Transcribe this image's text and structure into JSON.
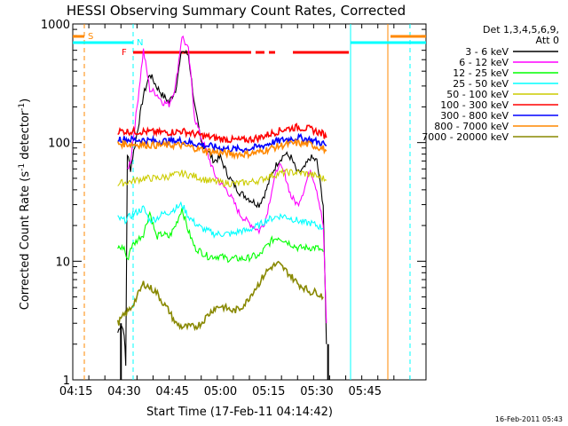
{
  "chart_data": {
    "type": "line",
    "title": "HESSI Observing Summary Count Rates, Corrected",
    "xlabel": "Start Time (17-Feb-11 04:14:42)",
    "ylabel_main": "Corrected Count Rate (s",
    "ylabel_sup1": "-1",
    "ylabel_mid": " detector",
    "ylabel_sup2": "-1",
    "ylabel_end": ")",
    "timestamp": "16-Feb-2011 05:43",
    "legend_title_1": "Det 1,3,4,5,6,9,",
    "legend_title_2": "Att 0",
    "x_range_min": [
      254,
      364
    ],
    "y_scale": "log",
    "y_range": [
      1,
      1000
    ],
    "x_ticks": [
      {
        "min": 255,
        "label": "04:15"
      },
      {
        "min": 270,
        "label": "04:30"
      },
      {
        "min": 285,
        "label": "04:45"
      },
      {
        "min": 300,
        "label": "05:00"
      },
      {
        "min": 315,
        "label": "05:15"
      },
      {
        "min": 330,
        "label": "05:30"
      },
      {
        "min": 345,
        "label": "05:45"
      }
    ],
    "y_ticks": [
      {
        "value": 1,
        "label": "1"
      },
      {
        "value": 10,
        "label": "10"
      },
      {
        "value": 100,
        "label": "100"
      },
      {
        "value": 1000,
        "label": "1000"
      }
    ],
    "annotations": [
      {
        "label": "S",
        "color": "#ff8800"
      },
      {
        "label": "N",
        "color": "#00ffff"
      },
      {
        "label": "F",
        "color": "#ff0000"
      }
    ],
    "series": [
      {
        "name": "3 - 6 keV",
        "color": "#000000",
        "points": [
          [
            268,
            2.5
          ],
          [
            269,
            3
          ],
          [
            270,
            2.5
          ],
          [
            270.5,
            1.3
          ],
          [
            271,
            80
          ],
          [
            272,
            60
          ],
          [
            274,
            120
          ],
          [
            276,
            250
          ],
          [
            278,
            380
          ],
          [
            280,
            300
          ],
          [
            282,
            250
          ],
          [
            284,
            220
          ],
          [
            286,
            280
          ],
          [
            288,
            600
          ],
          [
            290,
            550
          ],
          [
            292,
            200
          ],
          [
            294,
            100
          ],
          [
            296,
            85
          ],
          [
            298,
            70
          ],
          [
            300,
            75
          ],
          [
            302,
            55
          ],
          [
            304,
            45
          ],
          [
            306,
            38
          ],
          [
            308,
            35
          ],
          [
            310,
            32
          ],
          [
            312,
            30
          ],
          [
            314,
            38
          ],
          [
            316,
            55
          ],
          [
            318,
            70
          ],
          [
            320,
            80
          ],
          [
            322,
            75
          ],
          [
            324,
            55
          ],
          [
            326,
            60
          ],
          [
            328,
            75
          ],
          [
            330,
            70
          ],
          [
            332,
            30
          ],
          [
            333,
            2
          ]
        ]
      },
      {
        "name": "6 - 12 keV",
        "color": "#ff00ff",
        "points": [
          [
            271,
            60
          ],
          [
            272,
            70
          ],
          [
            274,
            200
          ],
          [
            276,
            600
          ],
          [
            278,
            280
          ],
          [
            280,
            260
          ],
          [
            282,
            220
          ],
          [
            284,
            210
          ],
          [
            286,
            300
          ],
          [
            288,
            800
          ],
          [
            290,
            600
          ],
          [
            292,
            160
          ],
          [
            294,
            110
          ],
          [
            296,
            80
          ],
          [
            298,
            55
          ],
          [
            300,
            45
          ],
          [
            302,
            40
          ],
          [
            304,
            32
          ],
          [
            306,
            25
          ],
          [
            308,
            22
          ],
          [
            310,
            20
          ],
          [
            312,
            18
          ],
          [
            314,
            22
          ],
          [
            316,
            40
          ],
          [
            318,
            65
          ],
          [
            320,
            55
          ],
          [
            322,
            35
          ],
          [
            324,
            30
          ],
          [
            326,
            40
          ],
          [
            328,
            60
          ],
          [
            330,
            40
          ],
          [
            332,
            20
          ],
          [
            333,
            3
          ]
        ]
      },
      {
        "name": "12 - 25 keV",
        "color": "#00ff00",
        "points": [
          [
            268,
            13
          ],
          [
            270,
            13
          ],
          [
            271,
            10
          ],
          [
            272,
            13
          ],
          [
            274,
            15
          ],
          [
            276,
            17
          ],
          [
            278,
            26
          ],
          [
            280,
            16
          ],
          [
            282,
            17
          ],
          [
            284,
            16
          ],
          [
            286,
            20
          ],
          [
            288,
            28
          ],
          [
            290,
            18
          ],
          [
            292,
            13
          ],
          [
            294,
            12
          ],
          [
            296,
            11
          ],
          [
            298,
            11
          ],
          [
            300,
            11
          ],
          [
            302,
            10.5
          ],
          [
            304,
            10.5
          ],
          [
            306,
            10.5
          ],
          [
            308,
            10.5
          ],
          [
            310,
            11
          ],
          [
            312,
            11
          ],
          [
            314,
            13
          ],
          [
            316,
            15
          ],
          [
            318,
            16
          ],
          [
            320,
            15
          ],
          [
            322,
            14
          ],
          [
            324,
            13
          ],
          [
            326,
            13
          ],
          [
            328,
            13
          ],
          [
            330,
            13
          ],
          [
            332,
            12
          ]
        ]
      },
      {
        "name": "25 - 50 keV",
        "color": "#00ffff",
        "points": [
          [
            268,
            23
          ],
          [
            270,
            22
          ],
          [
            272,
            24
          ],
          [
            274,
            26
          ],
          [
            276,
            28
          ],
          [
            278,
            22
          ],
          [
            280,
            23
          ],
          [
            282,
            25
          ],
          [
            284,
            26
          ],
          [
            286,
            28
          ],
          [
            288,
            30
          ],
          [
            290,
            24
          ],
          [
            292,
            21
          ],
          [
            294,
            19
          ],
          [
            296,
            18
          ],
          [
            298,
            17
          ],
          [
            300,
            17
          ],
          [
            302,
            17
          ],
          [
            304,
            17
          ],
          [
            306,
            18
          ],
          [
            308,
            18
          ],
          [
            310,
            19
          ],
          [
            312,
            20
          ],
          [
            314,
            22
          ],
          [
            316,
            23
          ],
          [
            318,
            24
          ],
          [
            320,
            24
          ],
          [
            322,
            23
          ],
          [
            324,
            22
          ],
          [
            326,
            21
          ],
          [
            328,
            21
          ],
          [
            330,
            20
          ],
          [
            332,
            19
          ]
        ]
      },
      {
        "name": "50 - 100 keV",
        "color": "#cccc00",
        "points": [
          [
            268,
            45
          ],
          [
            272,
            47
          ],
          [
            276,
            50
          ],
          [
            280,
            50
          ],
          [
            284,
            52
          ],
          [
            288,
            55
          ],
          [
            292,
            52
          ],
          [
            296,
            48
          ],
          [
            300,
            46
          ],
          [
            304,
            45
          ],
          [
            308,
            46
          ],
          [
            312,
            48
          ],
          [
            316,
            53
          ],
          [
            320,
            56
          ],
          [
            324,
            56
          ],
          [
            328,
            54
          ],
          [
            332,
            50
          ],
          [
            333,
            48
          ]
        ]
      },
      {
        "name": "100 - 300 keV",
        "color": "#ff0000",
        "points": [
          [
            268,
            125
          ],
          [
            272,
            124
          ],
          [
            276,
            124
          ],
          [
            280,
            122
          ],
          [
            284,
            122
          ],
          [
            288,
            125
          ],
          [
            292,
            118
          ],
          [
            296,
            112
          ],
          [
            300,
            108
          ],
          [
            304,
            105
          ],
          [
            308,
            105
          ],
          [
            312,
            110
          ],
          [
            316,
            120
          ],
          [
            320,
            130
          ],
          [
            324,
            135
          ],
          [
            328,
            130
          ],
          [
            332,
            118
          ],
          [
            333,
            110
          ]
        ]
      },
      {
        "name": "300 - 800 keV",
        "color": "#0000ff",
        "points": [
          [
            268,
            108
          ],
          [
            272,
            106
          ],
          [
            276,
            105
          ],
          [
            280,
            103
          ],
          [
            284,
            103
          ],
          [
            288,
            104
          ],
          [
            292,
            98
          ],
          [
            296,
            94
          ],
          [
            300,
            90
          ],
          [
            304,
            88
          ],
          [
            308,
            88
          ],
          [
            312,
            92
          ],
          [
            316,
            100
          ],
          [
            320,
            106
          ],
          [
            324,
            110
          ],
          [
            328,
            106
          ],
          [
            332,
            98
          ],
          [
            333,
            94
          ]
        ]
      },
      {
        "name": "800 - 7000 keV",
        "color": "#ff8800",
        "points": [
          [
            268,
            98
          ],
          [
            272,
            97
          ],
          [
            276,
            96
          ],
          [
            280,
            95
          ],
          [
            284,
            95
          ],
          [
            288,
            95
          ],
          [
            292,
            90
          ],
          [
            296,
            85
          ],
          [
            300,
            82
          ],
          [
            304,
            80
          ],
          [
            308,
            80
          ],
          [
            312,
            83
          ],
          [
            316,
            90
          ],
          [
            320,
            96
          ],
          [
            324,
            99
          ],
          [
            328,
            96
          ],
          [
            332,
            89
          ],
          [
            333,
            85
          ]
        ]
      },
      {
        "name": "7000 - 20000 keV",
        "color": "#888800",
        "points": [
          [
            268,
            3
          ],
          [
            270,
            3.5
          ],
          [
            272,
            4
          ],
          [
            274,
            5
          ],
          [
            276,
            6.5
          ],
          [
            278,
            6
          ],
          [
            280,
            5.5
          ],
          [
            282,
            4.5
          ],
          [
            284,
            3.8
          ],
          [
            286,
            3
          ],
          [
            288,
            2.8
          ],
          [
            290,
            2.8
          ],
          [
            292,
            2.8
          ],
          [
            294,
            3
          ],
          [
            296,
            3.5
          ],
          [
            298,
            4
          ],
          [
            300,
            4.2
          ],
          [
            302,
            4
          ],
          [
            304,
            3.8
          ],
          [
            306,
            4
          ],
          [
            308,
            4.5
          ],
          [
            310,
            5.5
          ],
          [
            312,
            6.5
          ],
          [
            314,
            8
          ],
          [
            316,
            9
          ],
          [
            318,
            9.5
          ],
          [
            320,
            8.5
          ],
          [
            322,
            7.5
          ],
          [
            324,
            6.5
          ],
          [
            326,
            6
          ],
          [
            328,
            5.5
          ],
          [
            330,
            5.5
          ],
          [
            332,
            5
          ]
        ]
      }
    ]
  }
}
